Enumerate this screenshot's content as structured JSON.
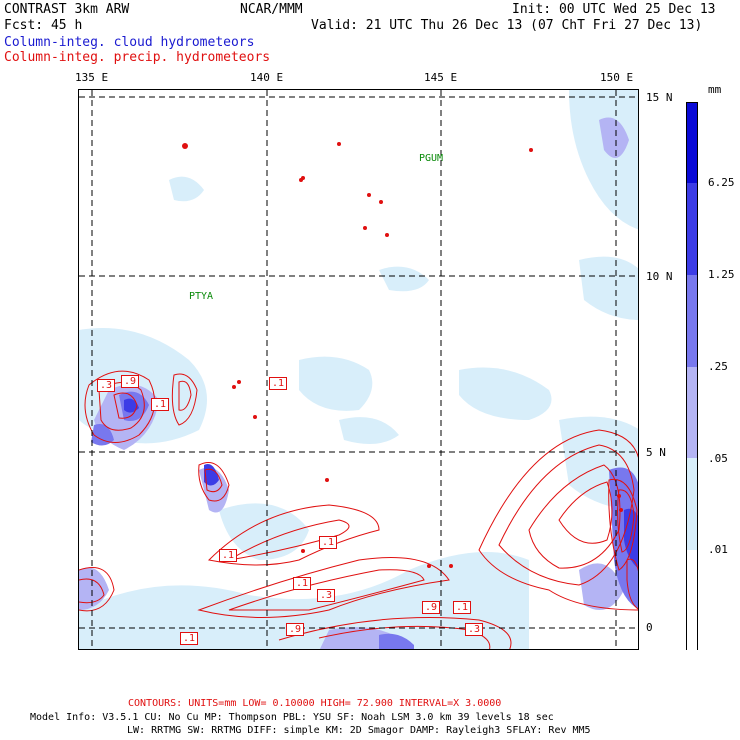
{
  "header": {
    "model": "CONTRAST  3km ARW",
    "org": "NCAR/MMM",
    "init": "Init: 00 UTC Wed 25 Dec 13",
    "fcst": "Fcst:   45 h",
    "valid": "Valid: 21 UTC Thu 26 Dec 13 (07 ChT Fri 27 Dec 13)",
    "field1": "Column-integ. cloud hydrometeors",
    "field2": "Column-integ. precip. hydrometeors"
  },
  "axes": {
    "lon_labels": [
      "135 E",
      "140 E",
      "145 E",
      "150 E"
    ],
    "lat_labels": [
      "15 N",
      "10 N",
      "5 N",
      "0"
    ]
  },
  "places": [
    "PGUM",
    "PTYA"
  ],
  "contour_labels": [
    ".3",
    ".9",
    ".1",
    ".1",
    ".1",
    ".1",
    ".1",
    ".3",
    ".9",
    ".1",
    ".1",
    ".9",
    ".3"
  ],
  "colorbar": {
    "unit": "mm",
    "levels": [
      "6.25",
      "1.25",
      ".25",
      ".05",
      ".01"
    ],
    "colors": [
      "#0a0ad6",
      "#3c3ce6",
      "#7878ee",
      "#b4b4f4",
      "#d8eefa",
      "#ffffff"
    ]
  },
  "footer": {
    "contours": "CONTOURS:  UNITS=mm  LOW= 0.10000      HIGH=  72.900      INTERVAL=X  3.0000",
    "model_info_1": "Model Info: V3.5.1    CU: No Cu    MP: Thompson    PBL: YSU     SF: Noah LSM     3.0 km   39 levels   18 sec",
    "model_info_2": "LW: RRTMG    SW: RRTMG   DIFF: simple KM: 2D Smagor DAMP: Rayleigh3  SFLAY: Rev MM5"
  },
  "colors": {
    "cloud": "#1a1ad0",
    "precip": "#e01010",
    "grid": "#000000"
  }
}
